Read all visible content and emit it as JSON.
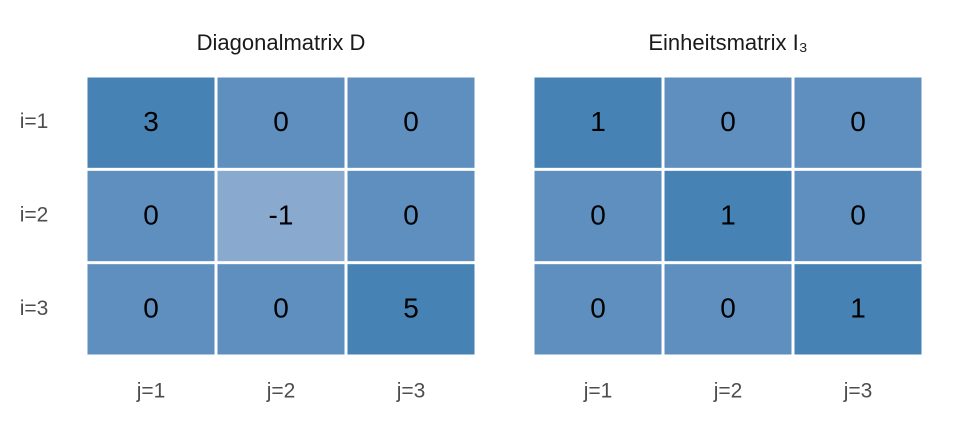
{
  "chart_data": [
    {
      "type": "heatmap",
      "title": "Diagonalmatrix D",
      "x_categories": [
        "j=1",
        "j=2",
        "j=3"
      ],
      "y_categories": [
        "i=1",
        "i=2",
        "i=3"
      ],
      "values": [
        [
          3,
          0,
          0
        ],
        [
          0,
          -1,
          0
        ],
        [
          0,
          0,
          5
        ]
      ],
      "colors": {
        "negative": "#89a9cf",
        "zero": "#5e8fbf",
        "positive": "#4682b4"
      }
    },
    {
      "type": "heatmap",
      "title": "Einheitsmatrix I₃",
      "x_categories": [
        "j=1",
        "j=2",
        "j=3"
      ],
      "values": [
        [
          1,
          0,
          0
        ],
        [
          0,
          1,
          0
        ],
        [
          0,
          0,
          1
        ]
      ],
      "colors": {
        "negative": "#89a9cf",
        "zero": "#5e8fbf",
        "positive": "#4682b4"
      }
    }
  ]
}
